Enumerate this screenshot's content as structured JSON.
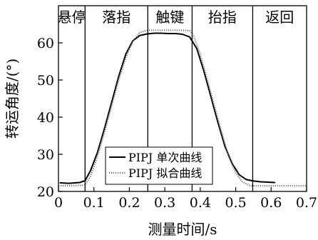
{
  "chart_data": {
    "type": "line",
    "xlabel": "测量时间/s",
    "ylabel": "转运角度/(°)",
    "xlim": [
      0,
      0.7
    ],
    "ylim": [
      20,
      70
    ],
    "x_ticks": [
      {
        "value": 0,
        "label": "0"
      },
      {
        "value": 0.1,
        "label": "0.1"
      },
      {
        "value": 0.2,
        "label": "0.2"
      },
      {
        "value": 0.3,
        "label": "0.3"
      },
      {
        "value": 0.4,
        "label": "0.4"
      },
      {
        "value": 0.5,
        "label": "0.5"
      },
      {
        "value": 0.6,
        "label": "0.6"
      },
      {
        "value": 0.7,
        "label": "0.7"
      }
    ],
    "y_ticks": [
      {
        "value": 20,
        "label": "20"
      },
      {
        "value": 30,
        "label": "30"
      },
      {
        "value": 40,
        "label": "40"
      },
      {
        "value": 50,
        "label": "50"
      },
      {
        "value": 60,
        "label": "60"
      }
    ],
    "phase_dividers": [
      0.075,
      0.252,
      0.377,
      0.548
    ],
    "phases": [
      {
        "label": "悬停",
        "from": 0,
        "to": 0.075
      },
      {
        "label": "落指",
        "from": 0.075,
        "to": 0.252
      },
      {
        "label": "触键",
        "from": 0.252,
        "to": 0.377
      },
      {
        "label": "抬指",
        "from": 0.377,
        "to": 0.548
      },
      {
        "label": "返回",
        "from": 0.548,
        "to": 0.7
      }
    ],
    "series": [
      {
        "name": "PIPJ 单次曲线",
        "style": "solid",
        "color": "#000000",
        "x": [
          0.005,
          0.03,
          0.06,
          0.075,
          0.09,
          0.11,
          0.13,
          0.15,
          0.17,
          0.19,
          0.21,
          0.23,
          0.25,
          0.27,
          0.29,
          0.31,
          0.33,
          0.35,
          0.37,
          0.39,
          0.41,
          0.43,
          0.45,
          0.47,
          0.49,
          0.51,
          0.53,
          0.55,
          0.57,
          0.59,
          0.61
        ],
        "y": [
          22.3,
          22.2,
          22.4,
          22.9,
          25.5,
          30.5,
          37.0,
          44.0,
          51.0,
          57.0,
          60.6,
          62.0,
          62.4,
          62.6,
          62.6,
          62.5,
          62.5,
          62.3,
          61.6,
          58.5,
          52.5,
          45.5,
          38.5,
          32.0,
          27.5,
          24.5,
          23.2,
          22.8,
          22.6,
          22.5,
          22.4
        ]
      },
      {
        "name": "PIPJ 拟合曲线",
        "style": "dotted",
        "color": "#707070",
        "x": [
          0.0,
          0.05,
          0.075,
          0.09,
          0.11,
          0.13,
          0.15,
          0.17,
          0.19,
          0.21,
          0.23,
          0.25,
          0.26,
          0.3,
          0.34,
          0.37,
          0.38,
          0.4,
          0.42,
          0.44,
          0.46,
          0.48,
          0.5,
          0.52,
          0.54,
          0.55,
          0.6,
          0.7
        ],
        "y": [
          21.5,
          21.6,
          21.7,
          24.0,
          29.5,
          36.0,
          43.0,
          50.0,
          56.0,
          60.5,
          62.8,
          63.3,
          63.4,
          63.4,
          63.4,
          63.3,
          62.2,
          57.0,
          50.0,
          43.0,
          36.0,
          29.5,
          25.0,
          22.5,
          21.6,
          21.5,
          21.5,
          21.5
        ]
      }
    ],
    "legend": {
      "position": "lower-left-inside",
      "entries": [
        "PIPJ 单次曲线",
        "PIPJ 拟合曲线"
      ]
    },
    "grid": false
  }
}
